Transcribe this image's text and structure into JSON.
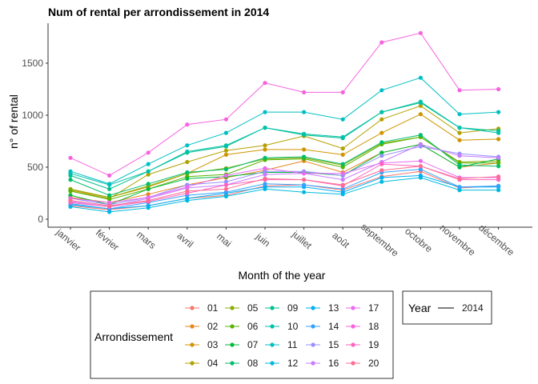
{
  "chart_data": {
    "type": "line",
    "title": "Num of rental per arrondissement in 2014",
    "xlabel": "Month of the year",
    "ylabel": "n° of rental",
    "categories": [
      "janvier",
      "février",
      "mars",
      "avril",
      "mai",
      "juin",
      "juillet",
      "août",
      "septembre",
      "octobre",
      "novembre",
      "décembre"
    ],
    "ylim": [
      0,
      1850
    ],
    "yticks": [
      0,
      500,
      1000,
      1500
    ],
    "grid": false,
    "legend_title": "Arrondissement",
    "legend_placement": "bottom",
    "year_legend": {
      "title": "Year",
      "entry": "2014"
    },
    "series": [
      {
        "name": "01",
        "color": "#F8766D",
        "values": [
          130,
          90,
          130,
          200,
          230,
          320,
          330,
          280,
          410,
          460,
          300,
          320
        ]
      },
      {
        "name": "02",
        "color": "#E7851E",
        "values": [
          210,
          160,
          240,
          330,
          400,
          470,
          560,
          450,
          640,
          720,
          500,
          540
        ]
      },
      {
        "name": "03",
        "color": "#D09400",
        "values": [
          280,
          210,
          310,
          440,
          620,
          670,
          670,
          620,
          830,
          1010,
          760,
          770
        ]
      },
      {
        "name": "04",
        "color": "#B2A100",
        "values": [
          270,
          200,
          430,
          550,
          660,
          710,
          800,
          680,
          960,
          1090,
          830,
          870
        ]
      },
      {
        "name": "05",
        "color": "#8BAB00",
        "values": [
          290,
          210,
          320,
          440,
          490,
          580,
          590,
          520,
          730,
          790,
          550,
          560
        ]
      },
      {
        "name": "06",
        "color": "#55B400",
        "values": [
          270,
          190,
          290,
          410,
          430,
          570,
          580,
          500,
          720,
          790,
          540,
          540
        ]
      },
      {
        "name": "07",
        "color": "#00BA38",
        "values": [
          230,
          140,
          290,
          390,
          410,
          450,
          450,
          420,
          640,
          720,
          500,
          580
        ]
      },
      {
        "name": "08",
        "color": "#00BE6C",
        "values": [
          380,
          230,
          340,
          450,
          480,
          590,
          600,
          530,
          740,
          810,
          520,
          510
        ]
      },
      {
        "name": "09",
        "color": "#00C08E",
        "values": [
          420,
          290,
          460,
          640,
          700,
          880,
          810,
          780,
          1030,
          1120,
          880,
          850
        ]
      },
      {
        "name": "10",
        "color": "#00C1AB",
        "values": [
          440,
          330,
          460,
          650,
          710,
          880,
          820,
          790,
          1030,
          1130,
          880,
          830
        ]
      },
      {
        "name": "11",
        "color": "#00BFC4",
        "values": [
          460,
          340,
          530,
          710,
          830,
          1030,
          1030,
          960,
          1240,
          1360,
          1010,
          1030
        ]
      },
      {
        "name": "12",
        "color": "#00BADE",
        "values": [
          120,
          70,
          110,
          180,
          220,
          290,
          260,
          240,
          360,
          400,
          280,
          280
        ]
      },
      {
        "name": "13",
        "color": "#00B0F6",
        "values": [
          140,
          100,
          130,
          200,
          250,
          310,
          310,
          260,
          400,
          420,
          310,
          310
        ]
      },
      {
        "name": "14",
        "color": "#35A2FF",
        "values": [
          150,
          100,
          160,
          230,
          260,
          340,
          330,
          290,
          450,
          480,
          310,
          320
        ]
      },
      {
        "name": "15",
        "color": "#9590FF",
        "values": [
          200,
          140,
          210,
          330,
          360,
          460,
          460,
          420,
          610,
          700,
          630,
          600
        ]
      },
      {
        "name": "16",
        "color": "#C77CFF",
        "values": [
          170,
          120,
          200,
          300,
          330,
          430,
          440,
          380,
          550,
          720,
          610,
          590
        ]
      },
      {
        "name": "17",
        "color": "#E76BF3",
        "values": [
          200,
          160,
          210,
          310,
          420,
          490,
          440,
          440,
          540,
          560,
          400,
          400
        ]
      },
      {
        "name": "18",
        "color": "#F862DF",
        "values": [
          590,
          420,
          640,
          910,
          960,
          1310,
          1220,
          1220,
          1700,
          1790,
          1240,
          1250
        ]
      },
      {
        "name": "19",
        "color": "#FF62BC",
        "values": [
          160,
          120,
          170,
          250,
          330,
          380,
          380,
          320,
          530,
          510,
          380,
          380
        ]
      },
      {
        "name": "20",
        "color": "#FF6C91",
        "values": [
          180,
          130,
          180,
          270,
          290,
          390,
          380,
          330,
          470,
          510,
          390,
          410
        ]
      }
    ]
  }
}
